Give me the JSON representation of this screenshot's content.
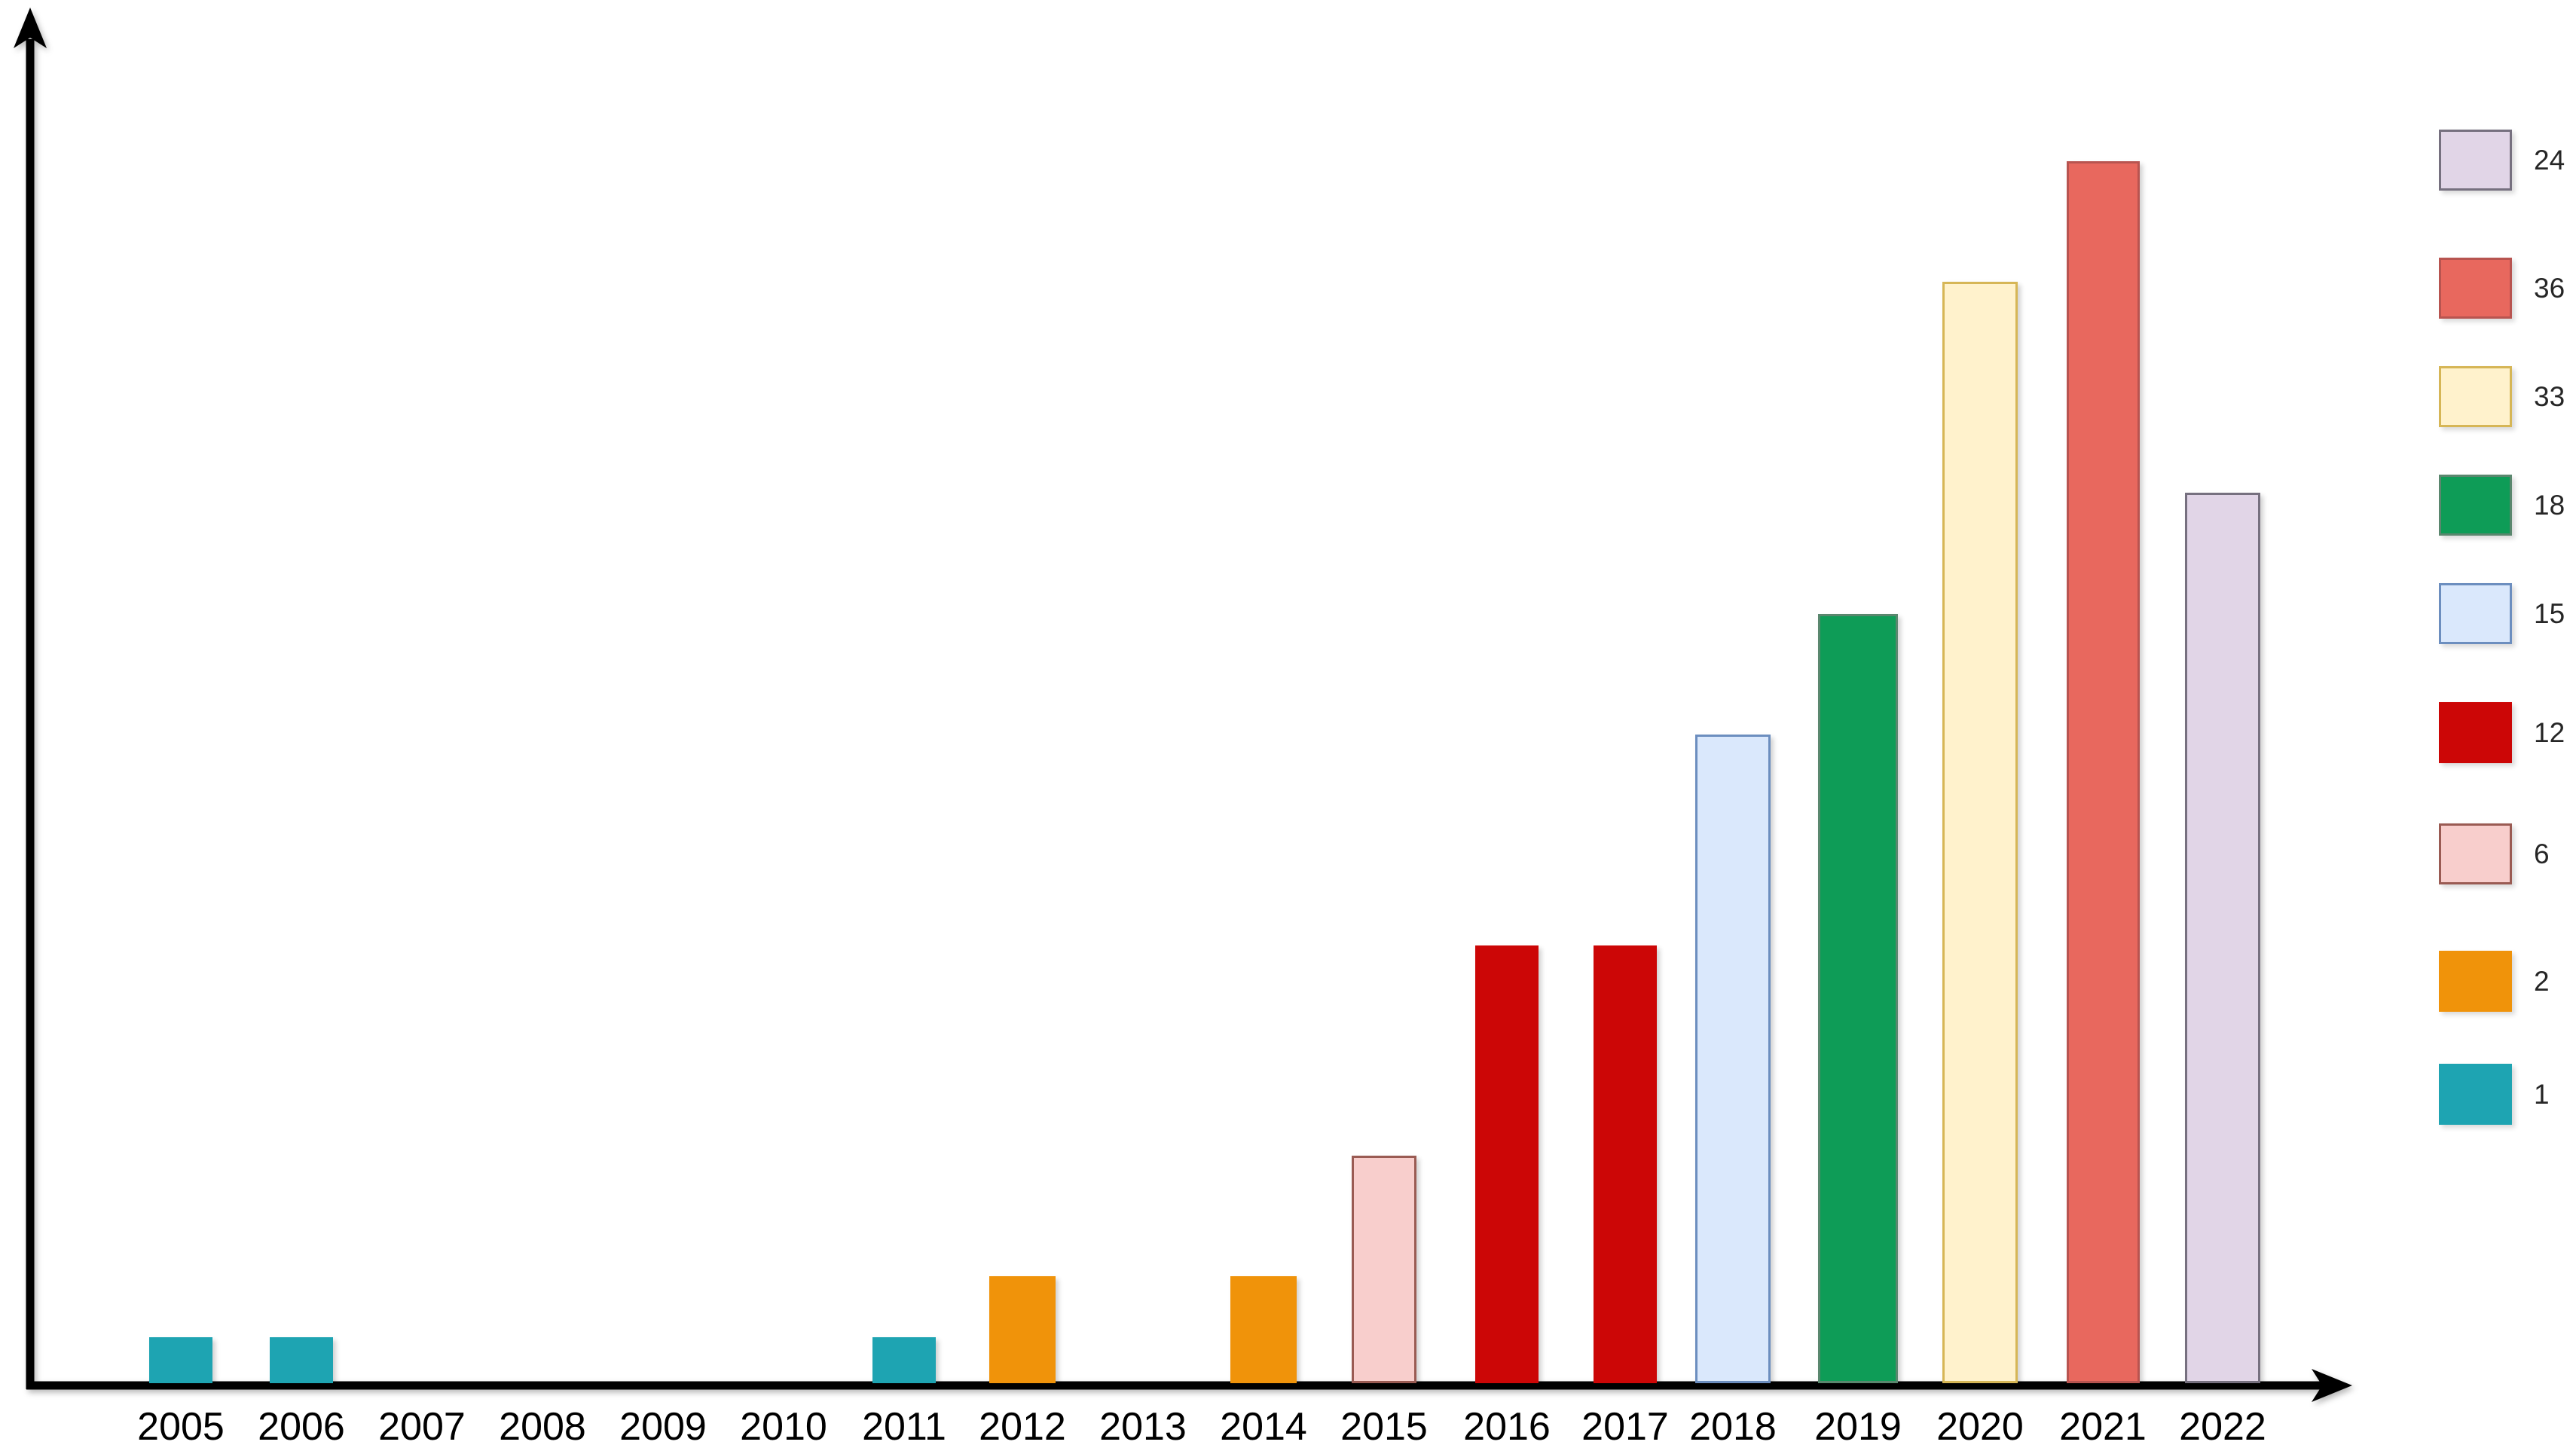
{
  "chart_data": {
    "type": "bar",
    "title": "",
    "xlabel": "",
    "ylabel": "",
    "background": "#FFFFFF",
    "axis_color": "#000000",
    "grid": false,
    "legend_position": "right",
    "categories": [
      "2005",
      "2006",
      "2007",
      "2008",
      "2009",
      "2010",
      "2011",
      "2012",
      "2013",
      "2014",
      "2015",
      "2016",
      "2017",
      "2018",
      "2019",
      "2020",
      "2021",
      "2022"
    ],
    "values": [
      1,
      1,
      null,
      null,
      null,
      null,
      1,
      2,
      null,
      2,
      6,
      12,
      12,
      15,
      18,
      33,
      36,
      24
    ],
    "bars": [
      {
        "year": "2005",
        "value": 1,
        "color_key": "teal"
      },
      {
        "year": "2006",
        "value": 1,
        "color_key": "teal"
      },
      {
        "year": "2011",
        "value": 1,
        "color_key": "teal"
      },
      {
        "year": "2012",
        "value": 2,
        "color_key": "orange"
      },
      {
        "year": "2014",
        "value": 2,
        "color_key": "orange"
      },
      {
        "year": "2015",
        "value": 6,
        "color_key": "pink"
      },
      {
        "year": "2016",
        "value": 12,
        "color_key": "red"
      },
      {
        "year": "2017",
        "value": 12,
        "color_key": "red"
      },
      {
        "year": "2018",
        "value": 15,
        "color_key": "lightblue"
      },
      {
        "year": "2019",
        "value": 18,
        "color_key": "green"
      },
      {
        "year": "2020",
        "value": 33,
        "color_key": "yellow"
      },
      {
        "year": "2021",
        "value": 36,
        "color_key": "salmon"
      },
      {
        "year": "2022",
        "value": 24,
        "color_key": "lavender"
      }
    ],
    "legend": [
      {
        "label": "24",
        "color_key": "lavender"
      },
      {
        "label": "36",
        "color_key": "salmon"
      },
      {
        "label": "33",
        "color_key": "yellow"
      },
      {
        "label": "18",
        "color_key": "green"
      },
      {
        "label": "15",
        "color_key": "lightblue"
      },
      {
        "label": "12",
        "color_key": "red"
      },
      {
        "label": "6",
        "color_key": "pink"
      },
      {
        "label": "2",
        "color_key": "orange"
      },
      {
        "label": "1",
        "color_key": "teal"
      }
    ],
    "palette": {
      "teal": {
        "fill": "#1EA4B2",
        "border": ""
      },
      "orange": {
        "fill": "#F0930A",
        "border": ""
      },
      "pink": {
        "fill": "#F8CECC",
        "border": "#9A5B53"
      },
      "red": {
        "fill": "#CC0606",
        "border": ""
      },
      "lightblue": {
        "fill": "#DAE8FC",
        "border": "#6C8EBF"
      },
      "green": {
        "fill": "#0E9C57",
        "border": "#5A876E"
      },
      "yellow": {
        "fill": "#FFF2CC",
        "border": "#D6B656"
      },
      "salmon": {
        "fill": "#E8685E",
        "border": "#B85450"
      },
      "lavender": {
        "fill": "#E1D5E7",
        "border": "#76707F"
      }
    }
  }
}
